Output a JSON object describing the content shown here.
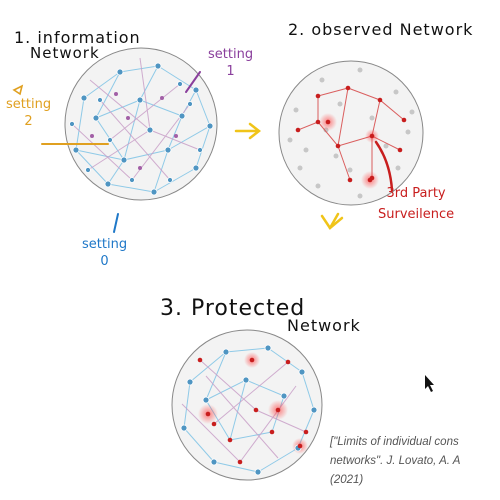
{
  "labels": {
    "title1_line1": "1. information",
    "title1_line2": "Network",
    "title2": "2. observed Network",
    "title3_line1": "3. Protected",
    "title3_line2": "Network",
    "setting1_line1": "setting",
    "setting1_line2": "1",
    "setting2_line1": "setting",
    "setting2_line2": "2",
    "setting0_line1": "setting",
    "setting0_line2": "0",
    "surveillance_line1": "3rd Party",
    "surveillance_line2": "Surveilence"
  },
  "citation": {
    "line1": "[\"Limits of individual cons",
    "line2": "networks\". J. Lovato, A. A",
    "line3": "(2021)"
  },
  "colors": {
    "setting1": "#8a3f9c",
    "setting2": "#e0a020",
    "setting0": "#1f78c8",
    "surveillance": "#c81e1e",
    "arrows": "#f0c419"
  }
}
